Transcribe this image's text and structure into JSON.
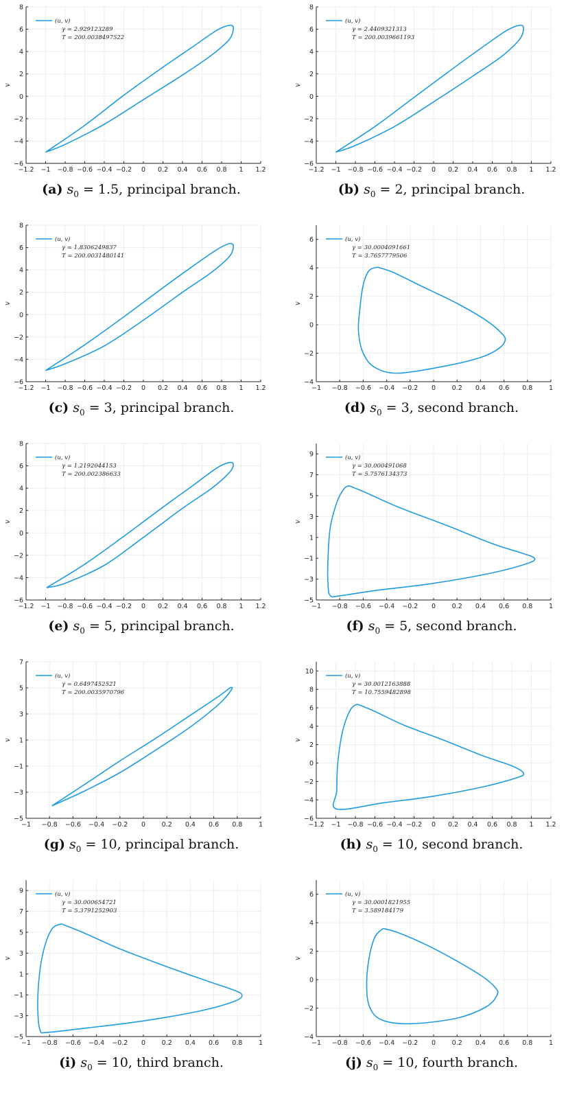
{
  "curve_color": "#1e9be2",
  "chart_data": [
    {
      "id": "a",
      "type": "line",
      "xlabel": "u",
      "ylabel": "v",
      "xlim": [
        -1.2,
        1.2
      ],
      "ylim": [
        -6,
        8
      ],
      "xticks": [
        -1.2,
        -1.0,
        -0.8,
        -0.6,
        -0.4,
        -0.2,
        0.0,
        0.2,
        0.4,
        0.6,
        0.8,
        1.0,
        1.2
      ],
      "yticks": [
        -6,
        -4,
        -2,
        0,
        2,
        4,
        6,
        8
      ],
      "grid": true,
      "legend_position": "top-left",
      "legend": [
        "(u, v)",
        "γ = 2.929123289",
        "T = 200.0038497522"
      ],
      "series": [
        {
          "name": "(u, v)",
          "points": [
            [
              -1.0,
              -5.0
            ],
            [
              -0.6,
              -2.6
            ],
            [
              -0.2,
              0.1
            ],
            [
              0.2,
              2.6
            ],
            [
              0.5,
              4.4
            ],
            [
              0.75,
              5.9
            ],
            [
              0.88,
              6.35
            ],
            [
              0.92,
              6.1
            ],
            [
              0.88,
              5.1
            ],
            [
              0.7,
              3.7
            ],
            [
              0.4,
              1.9
            ],
            [
              0.0,
              -0.3
            ],
            [
              -0.4,
              -2.5
            ],
            [
              -0.8,
              -4.3
            ],
            [
              -1.0,
              -5.0
            ]
          ]
        }
      ],
      "caption_label": "(a)",
      "caption_formula": "s",
      "caption_sub": "0",
      "caption_rest": " = 1.5, principal branch."
    },
    {
      "id": "b",
      "type": "line",
      "xlabel": "u",
      "ylabel": "v",
      "xlim": [
        -1.2,
        1.2
      ],
      "ylim": [
        -6,
        8
      ],
      "xticks": [
        -1.2,
        -1.0,
        -0.8,
        -0.6,
        -0.4,
        -0.2,
        0.0,
        0.2,
        0.4,
        0.6,
        0.8,
        1.0,
        1.2
      ],
      "yticks": [
        -6,
        -4,
        -2,
        0,
        2,
        4,
        6,
        8
      ],
      "grid": true,
      "legend_position": "top-left",
      "legend": [
        "(u, v)",
        "γ = 2.4409321313",
        "T = 200.0039661193"
      ],
      "series": [
        {
          "name": "(u, v)",
          "points": [
            [
              -1.0,
              -5.0
            ],
            [
              -0.6,
              -2.7
            ],
            [
              -0.2,
              -0.1
            ],
            [
              0.2,
              2.5
            ],
            [
              0.5,
              4.4
            ],
            [
              0.75,
              5.9
            ],
            [
              0.88,
              6.35
            ],
            [
              0.92,
              6.1
            ],
            [
              0.88,
              5.1
            ],
            [
              0.7,
              3.6
            ],
            [
              0.4,
              1.8
            ],
            [
              0.0,
              -0.5
            ],
            [
              -0.4,
              -2.7
            ],
            [
              -0.8,
              -4.4
            ],
            [
              -1.0,
              -5.0
            ]
          ]
        }
      ],
      "caption_label": "(b)",
      "caption_formula": "s",
      "caption_sub": "0",
      "caption_rest": " = 2, principal branch."
    },
    {
      "id": "c",
      "type": "line",
      "xlabel": "u",
      "ylabel": "v",
      "xlim": [
        -1.2,
        1.2
      ],
      "ylim": [
        -6,
        8
      ],
      "xticks": [
        -1.2,
        -1.0,
        -0.8,
        -0.6,
        -0.4,
        -0.2,
        0.0,
        0.2,
        0.4,
        0.6,
        0.8,
        1.0,
        1.2
      ],
      "yticks": [
        -6,
        -4,
        -2,
        0,
        2,
        4,
        6,
        8
      ],
      "grid": true,
      "legend_position": "top-left",
      "legend": [
        "(u, v)",
        "γ = 1.8306249837",
        "T = 200.0031480141"
      ],
      "series": [
        {
          "name": "(u, v)",
          "points": [
            [
              -1.0,
              -5.0
            ],
            [
              -0.6,
              -2.7
            ],
            [
              -0.2,
              -0.2
            ],
            [
              0.2,
              2.4
            ],
            [
              0.5,
              4.3
            ],
            [
              0.75,
              5.8
            ],
            [
              0.88,
              6.35
            ],
            [
              0.92,
              6.1
            ],
            [
              0.88,
              5.2
            ],
            [
              0.7,
              3.8
            ],
            [
              0.4,
              2.0
            ],
            [
              0.0,
              -0.5
            ],
            [
              -0.4,
              -2.8
            ],
            [
              -0.8,
              -4.4
            ],
            [
              -1.0,
              -5.0
            ]
          ]
        }
      ],
      "caption_label": "(c)",
      "caption_formula": "s",
      "caption_sub": "0",
      "caption_rest": " = 3, principal branch."
    },
    {
      "id": "d",
      "type": "line",
      "xlabel": "u",
      "ylabel": "v",
      "xlim": [
        -1.0,
        1.0
      ],
      "ylim": [
        -4,
        7
      ],
      "xticks": [
        -1.0,
        -0.8,
        -0.6,
        -0.4,
        -0.2,
        0.0,
        0.2,
        0.4,
        0.6,
        0.8,
        1.0
      ],
      "yticks": [
        -4,
        -2,
        0,
        2,
        4,
        6
      ],
      "grid": true,
      "legend_position": "top-left",
      "legend": [
        "(u, v)",
        "γ = 30.0004091661",
        "T = 3.7657779506"
      ],
      "series": [
        {
          "name": "(u, v)",
          "points": [
            [
              -0.48,
              4.05
            ],
            [
              -0.35,
              3.7
            ],
            [
              -0.1,
              2.7
            ],
            [
              0.2,
              1.5
            ],
            [
              0.45,
              0.3
            ],
            [
              0.58,
              -0.6
            ],
            [
              0.61,
              -1.1
            ],
            [
              0.55,
              -1.7
            ],
            [
              0.4,
              -2.3
            ],
            [
              0.1,
              -2.9
            ],
            [
              -0.3,
              -3.4
            ],
            [
              -0.5,
              -3.0
            ],
            [
              -0.6,
              -2.0
            ],
            [
              -0.64,
              -0.5
            ],
            [
              -0.63,
              1.0
            ],
            [
              -0.6,
              2.8
            ],
            [
              -0.55,
              3.8
            ],
            [
              -0.48,
              4.05
            ]
          ]
        }
      ],
      "caption_label": "(d)",
      "caption_formula": "s",
      "caption_sub": "0",
      "caption_rest": " = 3, second branch."
    },
    {
      "id": "e",
      "type": "line",
      "xlabel": "u",
      "ylabel": "v",
      "xlim": [
        -1.2,
        1.2
      ],
      "ylim": [
        -6,
        8
      ],
      "xticks": [
        -1.2,
        -1.0,
        -0.8,
        -0.6,
        -0.4,
        -0.2,
        0.0,
        0.2,
        0.4,
        0.6,
        0.8,
        1.0,
        1.2
      ],
      "yticks": [
        -6,
        -4,
        -2,
        0,
        2,
        4,
        6,
        8
      ],
      "grid": true,
      "legend_position": "top-left",
      "legend": [
        "(u, v)",
        "γ = 1.2192044153",
        "T = 200.002386633"
      ],
      "series": [
        {
          "name": "(u, v)",
          "points": [
            [
              -0.99,
              -4.9
            ],
            [
              -0.6,
              -2.8
            ],
            [
              -0.2,
              -0.3
            ],
            [
              0.2,
              2.3
            ],
            [
              0.5,
              4.2
            ],
            [
              0.75,
              5.8
            ],
            [
              0.88,
              6.3
            ],
            [
              0.92,
              6.1
            ],
            [
              0.88,
              5.4
            ],
            [
              0.7,
              4.0
            ],
            [
              0.4,
              2.2
            ],
            [
              0.0,
              -0.4
            ],
            [
              -0.4,
              -2.9
            ],
            [
              -0.8,
              -4.5
            ],
            [
              -0.99,
              -4.9
            ]
          ]
        }
      ],
      "caption_label": "(e)",
      "caption_formula": "s",
      "caption_sub": "0",
      "caption_rest": " = 5, principal branch."
    },
    {
      "id": "f",
      "type": "line",
      "xlabel": "u",
      "ylabel": "v",
      "xlim": [
        -1.0,
        1.0
      ],
      "ylim": [
        -5,
        10
      ],
      "xticks": [
        -1.0,
        -0.8,
        -0.6,
        -0.4,
        -0.2,
        0.0,
        0.2,
        0.4,
        0.6,
        0.8,
        1.0
      ],
      "yticks": [
        -5,
        -3,
        -1,
        1,
        3,
        5,
        7,
        9
      ],
      "grid": true,
      "legend_position": "top-left",
      "legend": [
        "(u, v)",
        "γ = 30.000491068",
        "T = 5.7576134373"
      ],
      "series": [
        {
          "name": "(u, v)",
          "points": [
            [
              -0.72,
              5.95
            ],
            [
              -0.6,
              5.4
            ],
            [
              -0.3,
              3.9
            ],
            [
              0.1,
              2.2
            ],
            [
              0.5,
              0.4
            ],
            [
              0.75,
              -0.5
            ],
            [
              0.86,
              -1.0
            ],
            [
              0.8,
              -1.5
            ],
            [
              0.5,
              -2.4
            ],
            [
              0.0,
              -3.4
            ],
            [
              -0.5,
              -4.1
            ],
            [
              -0.8,
              -4.6
            ],
            [
              -0.88,
              -4.6
            ],
            [
              -0.9,
              -3.5
            ],
            [
              -0.9,
              -1.0
            ],
            [
              -0.88,
              2.0
            ],
            [
              -0.82,
              4.5
            ],
            [
              -0.76,
              5.7
            ],
            [
              -0.72,
              5.95
            ]
          ]
        }
      ],
      "caption_label": "(f)",
      "caption_formula": "s",
      "caption_sub": "0",
      "caption_rest": " = 5, second branch."
    },
    {
      "id": "g",
      "type": "line",
      "xlabel": "u",
      "ylabel": "v",
      "xlim": [
        -1.0,
        1.0
      ],
      "ylim": [
        -5,
        7
      ],
      "xticks": [
        -1.0,
        -0.8,
        -0.6,
        -0.4,
        -0.2,
        0.0,
        0.2,
        0.4,
        0.6,
        0.8,
        1.0
      ],
      "yticks": [
        -5,
        -3,
        -1,
        1,
        3,
        5,
        7
      ],
      "grid": true,
      "legend_position": "top-left",
      "legend": [
        "(u, v)",
        "γ = 0.6497452521",
        "T = 200.0035970796"
      ],
      "series": [
        {
          "name": "(u, v)",
          "points": [
            [
              -0.78,
              -4.05
            ],
            [
              -0.5,
              -2.4
            ],
            [
              -0.2,
              -0.6
            ],
            [
              0.1,
              1.1
            ],
            [
              0.4,
              2.9
            ],
            [
              0.65,
              4.4
            ],
            [
              0.74,
              5.0
            ],
            [
              0.75,
              4.85
            ],
            [
              0.65,
              3.8
            ],
            [
              0.4,
              2.0
            ],
            [
              0.1,
              0.2
            ],
            [
              -0.2,
              -1.5
            ],
            [
              -0.5,
              -2.9
            ],
            [
              -0.78,
              -4.05
            ]
          ]
        }
      ],
      "caption_label": "(g)",
      "caption_formula": "s",
      "caption_sub": "0",
      "caption_rest": " = 10, principal branch."
    },
    {
      "id": "h",
      "type": "line",
      "xlabel": "u",
      "ylabel": "v",
      "xlim": [
        -1.2,
        1.2
      ],
      "ylim": [
        -6,
        11
      ],
      "xticks": [
        -1.2,
        -1.0,
        -0.8,
        -0.6,
        -0.4,
        -0.2,
        0.0,
        0.2,
        0.4,
        0.6,
        0.8,
        1.0,
        1.2
      ],
      "yticks": [
        -6,
        -4,
        -2,
        0,
        2,
        4,
        6,
        8,
        10
      ],
      "grid": true,
      "legend_position": "top-left",
      "legend": [
        "(u, v)",
        "γ = 30.0012163888",
        "T = 10.7559482898"
      ],
      "series": [
        {
          "name": "(u, v)",
          "points": [
            [
              -0.78,
              6.4
            ],
            [
              -0.6,
              5.6
            ],
            [
              -0.3,
              4.1
            ],
            [
              0.1,
              2.5
            ],
            [
              0.5,
              0.8
            ],
            [
              0.8,
              -0.3
            ],
            [
              0.92,
              -1.1
            ],
            [
              0.85,
              -1.6
            ],
            [
              0.5,
              -2.6
            ],
            [
              0.0,
              -3.6
            ],
            [
              -0.5,
              -4.3
            ],
            [
              -0.99,
              -5.0
            ],
            [
              -0.99,
              -3.0
            ],
            [
              -0.98,
              0.0
            ],
            [
              -0.93,
              3.5
            ],
            [
              -0.85,
              5.8
            ],
            [
              -0.78,
              6.4
            ]
          ]
        }
      ],
      "caption_label": "(h)",
      "caption_formula": "s",
      "caption_sub": "0",
      "caption_rest": " = 10, second branch."
    },
    {
      "id": "i",
      "type": "line",
      "xlabel": "u",
      "ylabel": "v",
      "xlim": [
        -1.0,
        1.0
      ],
      "ylim": [
        -5,
        10
      ],
      "xticks": [
        -1.0,
        -0.8,
        -0.6,
        -0.4,
        -0.2,
        0.0,
        0.2,
        0.4,
        0.6,
        0.8,
        1.0
      ],
      "yticks": [
        -5,
        -3,
        -1,
        1,
        3,
        5,
        7,
        9
      ],
      "grid": true,
      "legend_position": "top-left",
      "legend": [
        "(u, v)",
        "γ = 30.000654721",
        "T = 5.3791252903"
      ],
      "series": [
        {
          "name": "(u, v)",
          "points": [
            [
              -0.7,
              5.8
            ],
            [
              -0.5,
              4.9
            ],
            [
              -0.2,
              3.4
            ],
            [
              0.2,
              1.7
            ],
            [
              0.55,
              0.3
            ],
            [
              0.76,
              -0.5
            ],
            [
              0.84,
              -1.0
            ],
            [
              0.78,
              -1.6
            ],
            [
              0.5,
              -2.5
            ],
            [
              0.0,
              -3.5
            ],
            [
              -0.5,
              -4.2
            ],
            [
              -0.82,
              -4.6
            ],
            [
              -0.88,
              -4.4
            ],
            [
              -0.9,
              -2.5
            ],
            [
              -0.89,
              0.5
            ],
            [
              -0.85,
              3.3
            ],
            [
              -0.78,
              5.3
            ],
            [
              -0.7,
              5.8
            ]
          ]
        }
      ],
      "caption_label": "(i)",
      "caption_formula": "s",
      "caption_sub": "0",
      "caption_rest": " = 10, third branch."
    },
    {
      "id": "j",
      "type": "line",
      "xlabel": "u",
      "ylabel": "v",
      "xlim": [
        -1.0,
        1.0
      ],
      "ylim": [
        -4,
        7
      ],
      "xticks": [
        -1.0,
        -0.8,
        -0.6,
        -0.4,
        -0.2,
        0.0,
        0.2,
        0.4,
        0.6,
        0.8,
        1.0
      ],
      "yticks": [
        -4,
        -2,
        0,
        2,
        4,
        6
      ],
      "grid": true,
      "legend_position": "top-left",
      "legend": [
        "(u, v)",
        "γ = 30.0001821955",
        "T = 3.589184179"
      ],
      "series": [
        {
          "name": "(u, v)",
          "points": [
            [
              -0.43,
              3.6
            ],
            [
              -0.3,
              3.3
            ],
            [
              -0.05,
              2.4
            ],
            [
              0.2,
              1.3
            ],
            [
              0.42,
              0.2
            ],
            [
              0.53,
              -0.6
            ],
            [
              0.54,
              -1.1
            ],
            [
              0.45,
              -1.9
            ],
            [
              0.2,
              -2.7
            ],
            [
              -0.2,
              -3.1
            ],
            [
              -0.45,
              -2.8
            ],
            [
              -0.55,
              -1.8
            ],
            [
              -0.57,
              -0.2
            ],
            [
              -0.55,
              1.5
            ],
            [
              -0.5,
              3.0
            ],
            [
              -0.43,
              3.6
            ]
          ]
        }
      ],
      "caption_label": "(j)",
      "caption_formula": "s",
      "caption_sub": "0",
      "caption_rest": " = 10, fourth branch."
    }
  ]
}
